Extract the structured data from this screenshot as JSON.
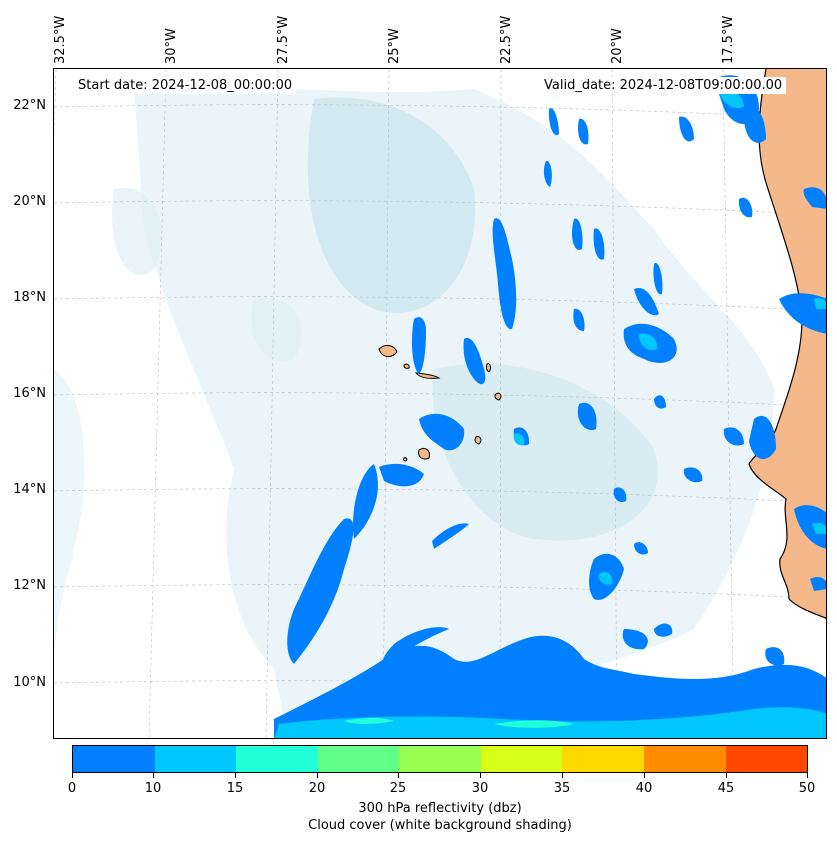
{
  "map": {
    "start_date": "Start date: 2024-12-08_00:00:00",
    "valid_date": "Valid_date: 2024-12-08T09:00:00.00",
    "lon_labels": [
      "32.5°W",
      "30°W",
      "27.5°W",
      "25°W",
      "22.5°W",
      "20°W",
      "17.5°W"
    ],
    "lat_labels": [
      "22°N",
      "20°N",
      "18°N",
      "16°N",
      "14°N",
      "12°N",
      "10°N"
    ],
    "land_color": "#f5b88a",
    "coastline_color": "#000000",
    "cloud_color": "#cfe7f0"
  },
  "colorbar": {
    "ticks": [
      "0",
      "10",
      "15",
      "20",
      "25",
      "30",
      "35",
      "40",
      "45",
      "50"
    ],
    "colors": [
      "#0080ff",
      "#00c8ff",
      "#20ffd8",
      "#60ff88",
      "#98ff50",
      "#d8ff18",
      "#ffd800",
      "#ff8c00",
      "#ff4800"
    ],
    "label_line1": "300 hPa reflectivity (dbz)",
    "label_line2": "Cloud cover (white background shading)"
  }
}
